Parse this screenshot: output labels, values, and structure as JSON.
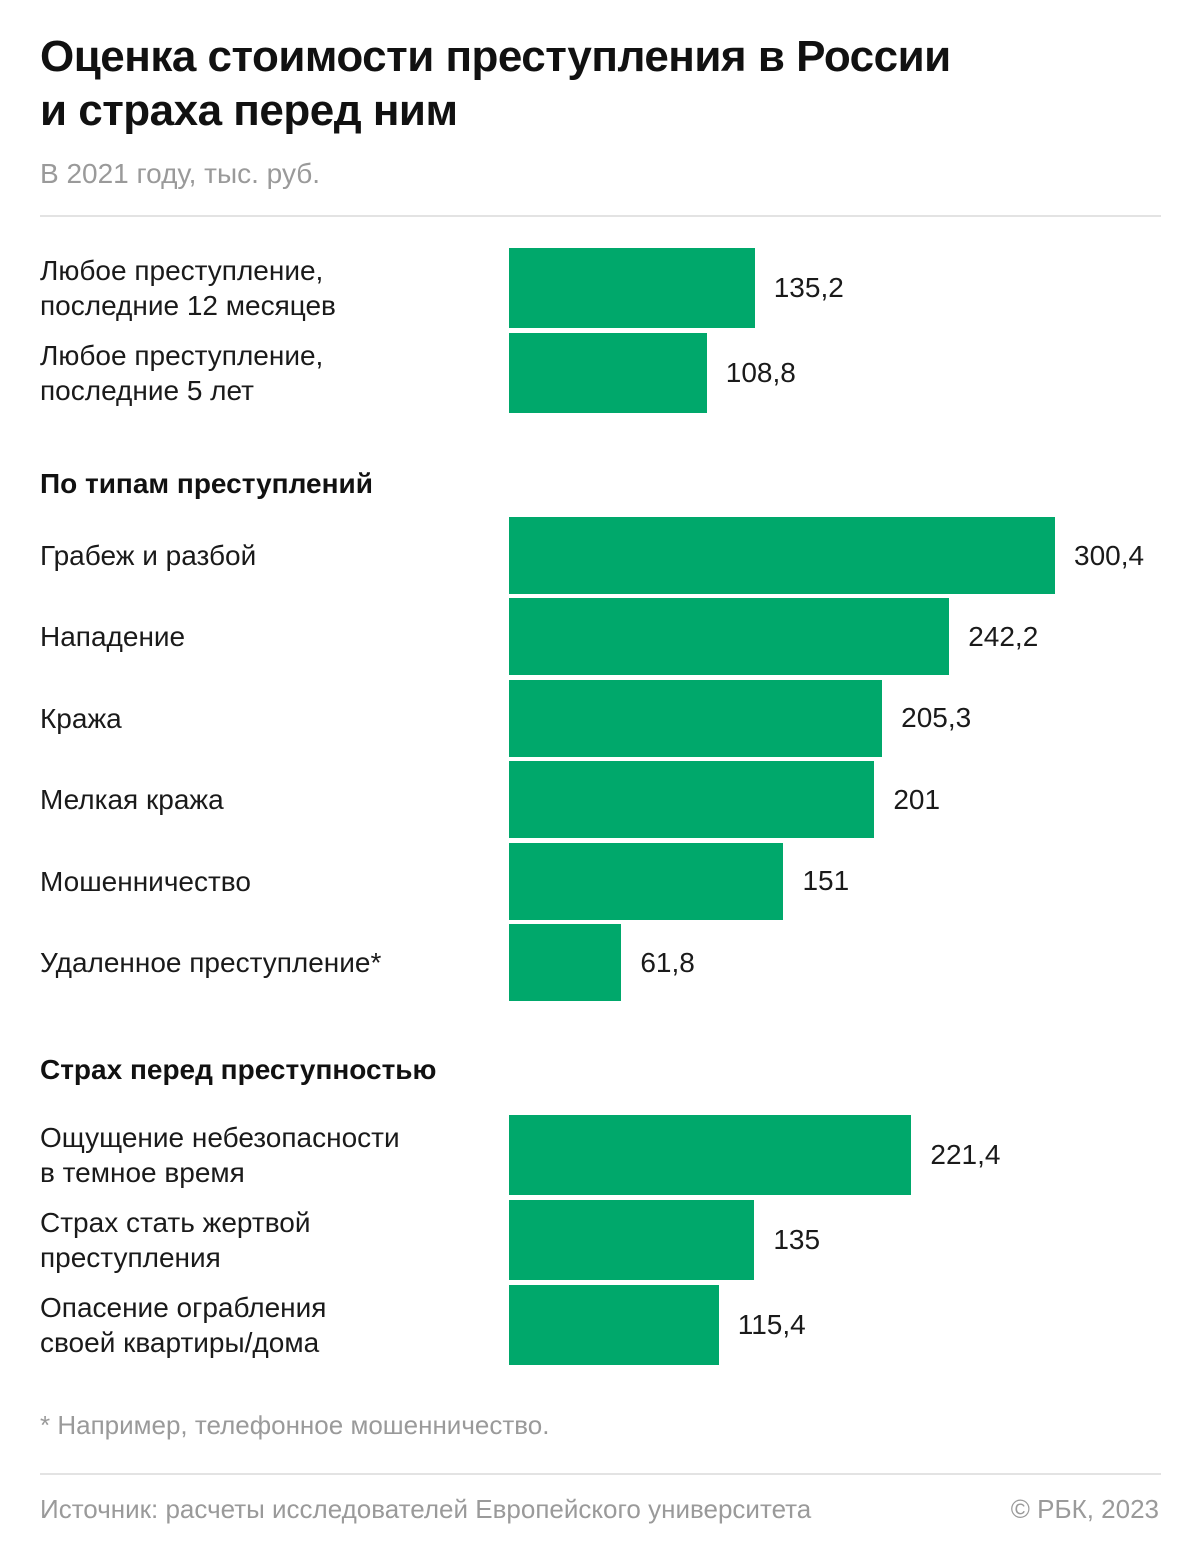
{
  "header": {
    "title": "Оценка стоимости преступления в России\nи страха перед ним",
    "subtitle": "В 2021 году, тыс. руб."
  },
  "colors": {
    "bar": "#00a86b"
  },
  "chart_data": {
    "type": "bar",
    "orientation": "horizontal",
    "title": "Оценка стоимости преступления в России и страха перед ним",
    "subtitle": "В 2021 году, тыс. руб.",
    "xlim": [
      0,
      300.4
    ],
    "groups": [
      {
        "id": "overall",
        "heading": "",
        "items": [
          {
            "label": "Любое преступление,\nпоследние 12 месяцев",
            "value": 135.2,
            "value_label": "135,2"
          },
          {
            "label": "Любое преступление,\nпоследние 5 лет",
            "value": 108.8,
            "value_label": "108,8"
          }
        ]
      },
      {
        "id": "types",
        "heading": "По типам преступлений",
        "items": [
          {
            "label": "Грабеж и разбой",
            "value": 300.4,
            "value_label": "300,4"
          },
          {
            "label": "Нападение",
            "value": 242.2,
            "value_label": "242,2"
          },
          {
            "label": "Кража",
            "value": 205.3,
            "value_label": "205,3"
          },
          {
            "label": "Мелкая кража",
            "value": 201,
            "value_label": "201"
          },
          {
            "label": "Мошенничество",
            "value": 151,
            "value_label": "151"
          },
          {
            "label": "Удаленное преступление*",
            "value": 61.8,
            "value_label": "61,8"
          }
        ]
      },
      {
        "id": "fear",
        "heading": "Страх перед преступностью",
        "items": [
          {
            "label": "Ощущение небезопасности\nв темное время",
            "value": 221.4,
            "value_label": "221,4"
          },
          {
            "label": "Страх стать жертвой\nпреступления",
            "value": 135,
            "value_label": "135"
          },
          {
            "label": "Опасение ограбления\nсвоей квартиры/дома",
            "value": 115.4,
            "value_label": "115,4"
          }
        ]
      }
    ]
  },
  "footer": {
    "note": "* Например, телефонное мошенничество.",
    "source": "Источник: расчеты исследователей Европейского университета",
    "copyright": "© РБК, 2023"
  }
}
